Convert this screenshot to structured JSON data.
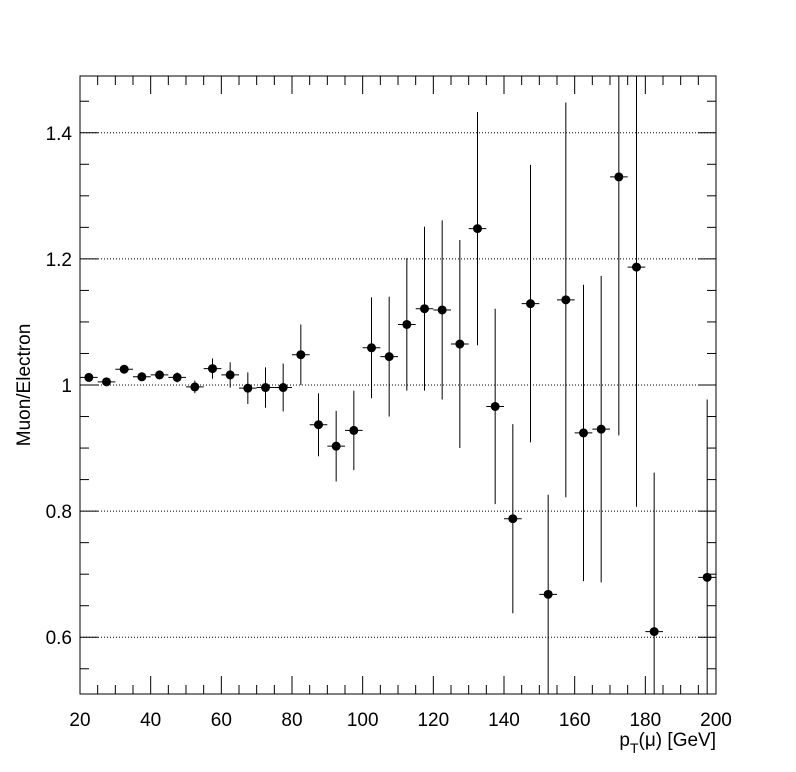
{
  "chart_data": {
    "type": "scatter",
    "title": "",
    "xlabel": {
      "base": "p",
      "sub": "T",
      "rest": "(μ) [GeV]"
    },
    "ylabel": "Muon/Electron",
    "xlim": [
      20,
      200
    ],
    "ylim": [
      0.51,
      1.49
    ],
    "x_ticks": [
      20,
      40,
      60,
      80,
      100,
      120,
      140,
      160,
      180,
      200
    ],
    "x_tick_labels": [
      "20",
      "40",
      "60",
      "80",
      "100",
      "120",
      "140",
      "160",
      "180",
      "200"
    ],
    "y_ticks": [
      0.6,
      0.8,
      1.0,
      1.2,
      1.4
    ],
    "y_tick_labels": [
      "0.6",
      "0.8",
      "1",
      "1.2",
      "1.4"
    ],
    "grid": "horizontal-dotted",
    "bin_width": 5,
    "points": [
      {
        "x": 22.5,
        "y": 1.012,
        "yerr": 0.005
      },
      {
        "x": 27.5,
        "y": 1.005,
        "yerr": 0.005
      },
      {
        "x": 32.5,
        "y": 1.025,
        "yerr": 0.006
      },
      {
        "x": 37.5,
        "y": 1.013,
        "yerr": 0.007
      },
      {
        "x": 42.5,
        "y": 1.016,
        "yerr": 0.007
      },
      {
        "x": 47.5,
        "y": 1.012,
        "yerr": 0.008
      },
      {
        "x": 52.5,
        "y": 0.997,
        "yerr": 0.01
      },
      {
        "x": 57.5,
        "y": 1.026,
        "yerr": 0.016
      },
      {
        "x": 62.5,
        "y": 1.016,
        "yerr": 0.02
      },
      {
        "x": 67.5,
        "y": 0.995,
        "yerr": 0.025
      },
      {
        "x": 72.5,
        "y": 0.996,
        "yerr": 0.032
      },
      {
        "x": 77.5,
        "y": 0.996,
        "yerr": 0.038
      },
      {
        "x": 82.5,
        "y": 1.048,
        "yerr": 0.048
      },
      {
        "x": 87.5,
        "y": 0.937,
        "yerr": 0.05
      },
      {
        "x": 92.5,
        "y": 0.903,
        "yerr": 0.056
      },
      {
        "x": 97.5,
        "y": 0.928,
        "yerr": 0.063
      },
      {
        "x": 102.5,
        "y": 1.059,
        "yerr": 0.08
      },
      {
        "x": 107.5,
        "y": 1.045,
        "yerr": 0.095
      },
      {
        "x": 112.5,
        "y": 1.096,
        "yerr": 0.105
      },
      {
        "x": 117.5,
        "y": 1.121,
        "yerr": 0.13
      },
      {
        "x": 122.5,
        "y": 1.119,
        "yerr": 0.142
      },
      {
        "x": 127.5,
        "y": 1.065,
        "yerr": 0.165
      },
      {
        "x": 132.5,
        "y": 1.248,
        "yerr": 0.185
      },
      {
        "x": 137.5,
        "y": 0.966,
        "yerr": 0.155
      },
      {
        "x": 142.5,
        "y": 0.788,
        "yerr": 0.15
      },
      {
        "x": 147.5,
        "y": 1.129,
        "yerr": 0.22
      },
      {
        "x": 152.5,
        "y": 0.668,
        "yerr": 0.158
      },
      {
        "x": 157.5,
        "y": 1.135,
        "yerr": 0.313
      },
      {
        "x": 162.5,
        "y": 0.924,
        "yerr": 0.235
      },
      {
        "x": 167.5,
        "y": 0.93,
        "yerr": 0.243
      },
      {
        "x": 172.5,
        "y": 1.33,
        "yerr": 0.41
      },
      {
        "x": 177.5,
        "y": 1.187,
        "yerr": 0.38
      },
      {
        "x": 182.5,
        "y": 0.609,
        "yerr": 0.252
      },
      {
        "x": 197.5,
        "y": 0.695,
        "yerr": 0.282
      }
    ]
  }
}
